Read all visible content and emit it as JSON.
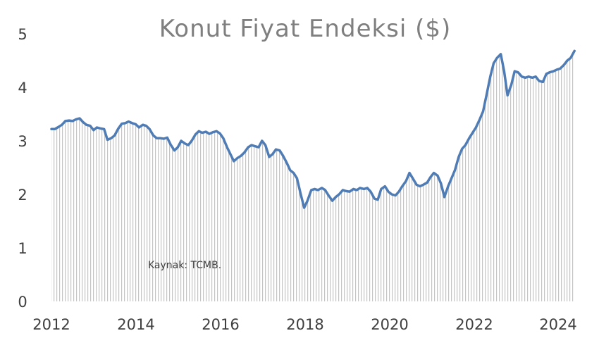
{
  "chart_data": {
    "type": "area",
    "title": "Konut Fiyat Endeksi ($)",
    "xlabel": "",
    "ylabel": "",
    "annotation": "Kaynak: TCMB.",
    "x_ticks": [
      "2012",
      "2014",
      "2016",
      "2018",
      "2020",
      "2022",
      "2024"
    ],
    "y_ticks": [
      "0",
      "1",
      "2",
      "3",
      "4",
      "5"
    ],
    "xlim": [
      2012,
      2024.45
    ],
    "ylim": [
      0,
      5
    ],
    "grid": false,
    "legend": "none",
    "line_color": "#4f7cb4",
    "fill_color": "#c4c4c4",
    "points": [
      [
        2012.0,
        3.22
      ],
      [
        2012.08,
        3.22
      ],
      [
        2012.17,
        3.26
      ],
      [
        2012.25,
        3.3
      ],
      [
        2012.33,
        3.37
      ],
      [
        2012.42,
        3.38
      ],
      [
        2012.5,
        3.37
      ],
      [
        2012.58,
        3.4
      ],
      [
        2012.67,
        3.42
      ],
      [
        2012.75,
        3.35
      ],
      [
        2012.83,
        3.3
      ],
      [
        2012.92,
        3.28
      ],
      [
        2013.0,
        3.2
      ],
      [
        2013.08,
        3.25
      ],
      [
        2013.17,
        3.23
      ],
      [
        2013.25,
        3.22
      ],
      [
        2013.33,
        3.02
      ],
      [
        2013.42,
        3.05
      ],
      [
        2013.5,
        3.1
      ],
      [
        2013.58,
        3.22
      ],
      [
        2013.67,
        3.32
      ],
      [
        2013.75,
        3.33
      ],
      [
        2013.83,
        3.36
      ],
      [
        2013.92,
        3.33
      ],
      [
        2014.0,
        3.31
      ],
      [
        2014.08,
        3.25
      ],
      [
        2014.17,
        3.3
      ],
      [
        2014.25,
        3.28
      ],
      [
        2014.33,
        3.22
      ],
      [
        2014.42,
        3.1
      ],
      [
        2014.5,
        3.05
      ],
      [
        2014.58,
        3.05
      ],
      [
        2014.67,
        3.04
      ],
      [
        2014.75,
        3.06
      ],
      [
        2014.83,
        2.93
      ],
      [
        2014.92,
        2.82
      ],
      [
        2015.0,
        2.88
      ],
      [
        2015.08,
        3.0
      ],
      [
        2015.17,
        2.95
      ],
      [
        2015.25,
        2.92
      ],
      [
        2015.33,
        3.0
      ],
      [
        2015.42,
        3.12
      ],
      [
        2015.5,
        3.18
      ],
      [
        2015.58,
        3.15
      ],
      [
        2015.67,
        3.17
      ],
      [
        2015.75,
        3.13
      ],
      [
        2015.83,
        3.16
      ],
      [
        2015.92,
        3.18
      ],
      [
        2016.0,
        3.14
      ],
      [
        2016.08,
        3.05
      ],
      [
        2016.17,
        2.88
      ],
      [
        2016.25,
        2.75
      ],
      [
        2016.33,
        2.62
      ],
      [
        2016.42,
        2.68
      ],
      [
        2016.5,
        2.72
      ],
      [
        2016.58,
        2.78
      ],
      [
        2016.67,
        2.88
      ],
      [
        2016.75,
        2.92
      ],
      [
        2016.83,
        2.9
      ],
      [
        2016.92,
        2.88
      ],
      [
        2017.0,
        3.0
      ],
      [
        2017.08,
        2.92
      ],
      [
        2017.17,
        2.7
      ],
      [
        2017.25,
        2.75
      ],
      [
        2017.33,
        2.84
      ],
      [
        2017.42,
        2.82
      ],
      [
        2017.5,
        2.72
      ],
      [
        2017.58,
        2.6
      ],
      [
        2017.67,
        2.45
      ],
      [
        2017.75,
        2.4
      ],
      [
        2017.83,
        2.3
      ],
      [
        2017.92,
        2.0
      ],
      [
        2018.0,
        1.75
      ],
      [
        2018.08,
        1.88
      ],
      [
        2018.17,
        2.08
      ],
      [
        2018.25,
        2.1
      ],
      [
        2018.33,
        2.08
      ],
      [
        2018.42,
        2.12
      ],
      [
        2018.5,
        2.08
      ],
      [
        2018.58,
        1.98
      ],
      [
        2018.67,
        1.88
      ],
      [
        2018.75,
        1.95
      ],
      [
        2018.83,
        2.0
      ],
      [
        2018.92,
        2.08
      ],
      [
        2019.0,
        2.06
      ],
      [
        2019.08,
        2.05
      ],
      [
        2019.17,
        2.1
      ],
      [
        2019.25,
        2.08
      ],
      [
        2019.33,
        2.12
      ],
      [
        2019.42,
        2.1
      ],
      [
        2019.5,
        2.12
      ],
      [
        2019.58,
        2.05
      ],
      [
        2019.67,
        1.92
      ],
      [
        2019.75,
        1.9
      ],
      [
        2019.83,
        2.1
      ],
      [
        2019.92,
        2.15
      ],
      [
        2020.0,
        2.05
      ],
      [
        2020.08,
        2.0
      ],
      [
        2020.17,
        1.98
      ],
      [
        2020.25,
        2.05
      ],
      [
        2020.33,
        2.15
      ],
      [
        2020.42,
        2.25
      ],
      [
        2020.5,
        2.4
      ],
      [
        2020.58,
        2.3
      ],
      [
        2020.67,
        2.18
      ],
      [
        2020.75,
        2.15
      ],
      [
        2020.83,
        2.18
      ],
      [
        2020.92,
        2.22
      ],
      [
        2021.0,
        2.32
      ],
      [
        2021.08,
        2.4
      ],
      [
        2021.17,
        2.35
      ],
      [
        2021.25,
        2.2
      ],
      [
        2021.33,
        1.95
      ],
      [
        2021.42,
        2.15
      ],
      [
        2021.5,
        2.3
      ],
      [
        2021.58,
        2.45
      ],
      [
        2021.67,
        2.7
      ],
      [
        2021.75,
        2.85
      ],
      [
        2021.83,
        2.92
      ],
      [
        2021.92,
        3.05
      ],
      [
        2022.0,
        3.15
      ],
      [
        2022.08,
        3.25
      ],
      [
        2022.17,
        3.4
      ],
      [
        2022.25,
        3.55
      ],
      [
        2022.33,
        3.85
      ],
      [
        2022.42,
        4.2
      ],
      [
        2022.5,
        4.45
      ],
      [
        2022.58,
        4.55
      ],
      [
        2022.67,
        4.62
      ],
      [
        2022.75,
        4.3
      ],
      [
        2022.83,
        3.85
      ],
      [
        2022.92,
        4.05
      ],
      [
        2023.0,
        4.3
      ],
      [
        2023.08,
        4.28
      ],
      [
        2023.17,
        4.2
      ],
      [
        2023.25,
        4.18
      ],
      [
        2023.33,
        4.2
      ],
      [
        2023.42,
        4.18
      ],
      [
        2023.5,
        4.2
      ],
      [
        2023.58,
        4.12
      ],
      [
        2023.67,
        4.1
      ],
      [
        2023.75,
        4.25
      ],
      [
        2023.83,
        4.28
      ],
      [
        2023.92,
        4.3
      ],
      [
        2024.0,
        4.33
      ],
      [
        2024.08,
        4.35
      ],
      [
        2024.17,
        4.42
      ],
      [
        2024.25,
        4.5
      ],
      [
        2024.33,
        4.55
      ],
      [
        2024.42,
        4.68
      ]
    ]
  }
}
